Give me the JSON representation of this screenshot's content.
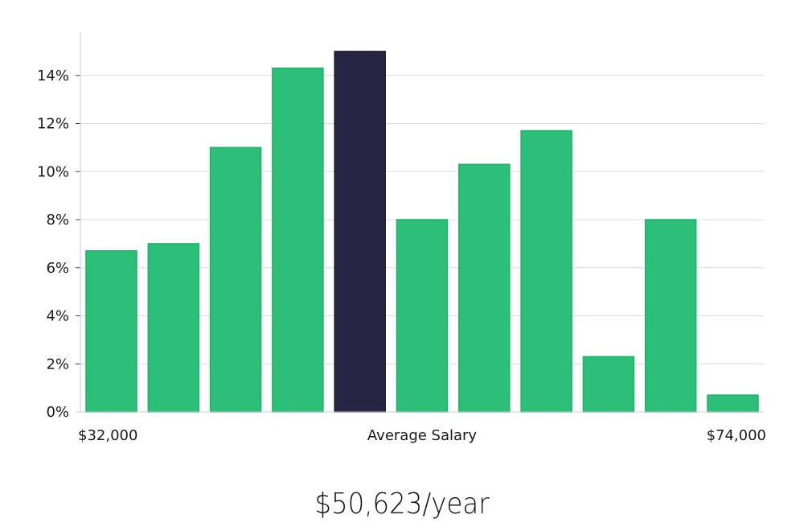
{
  "chart_data": {
    "type": "bar",
    "title": "",
    "xlabel": "Average Salary",
    "x_min_label": "$32,000",
    "x_max_label": "$74,000",
    "ylabel": "",
    "ylim": [
      0,
      15.8
    ],
    "yticks": [
      0,
      2,
      4,
      6,
      8,
      10,
      12,
      14
    ],
    "ytick_labels": [
      "0%",
      "2%",
      "4%",
      "6%",
      "8%",
      "10%",
      "12%",
      "14%"
    ],
    "values": [
      6.7,
      7.0,
      11.0,
      14.3,
      15.0,
      8.0,
      10.3,
      11.7,
      2.3,
      8.0,
      0.7
    ],
    "highlight_index": 4,
    "grid": true
  },
  "colors": {
    "bar": "#2bbf77",
    "bar_edge": "#20b06a",
    "highlight": "#282444",
    "grid": "#dcdcdc",
    "axis": "#cccccc"
  },
  "summary": {
    "average_salary": "$50,623/year"
  }
}
